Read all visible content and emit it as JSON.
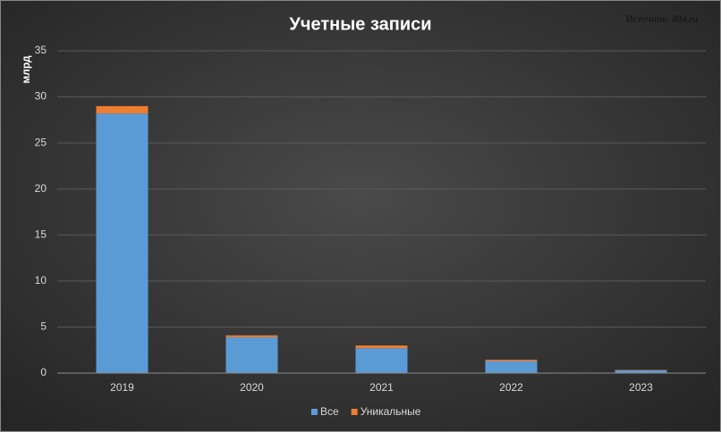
{
  "chart_data": {
    "type": "stacked_bar",
    "title": "Учетные записи",
    "source": "Источник: dlbi.ru",
    "y_label": "млрд",
    "categories": [
      "2019",
      "2020",
      "2021",
      "2022",
      "2023"
    ],
    "series": [
      {
        "name": "Все",
        "color": "#5b9bd5",
        "values": [
          28.2,
          3.9,
          2.7,
          1.3,
          0.3
        ]
      },
      {
        "name": "Уникальные",
        "color": "#ed7d31",
        "values": [
          0.8,
          0.2,
          0.3,
          0.15,
          0.05
        ]
      }
    ],
    "ylim": [
      0,
      35
    ],
    "yticks": [
      0,
      5,
      10,
      15,
      20,
      25,
      30,
      35
    ],
    "grid": true,
    "legend": "bottom"
  }
}
